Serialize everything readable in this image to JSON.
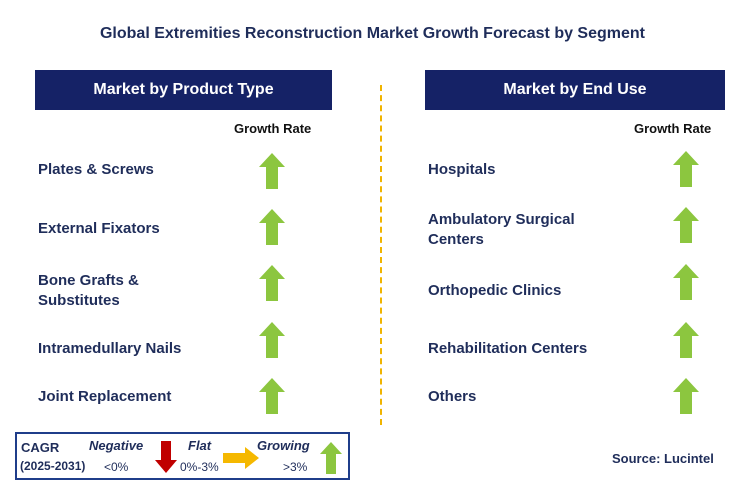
{
  "title": "Global Extremities Reconstruction Market Growth Forecast by Segment",
  "left_panel": {
    "header": "Market by Product Type",
    "growth_rate_label": "Growth Rate",
    "items": [
      {
        "label_line1": "Plates & Screws",
        "label_line2": "",
        "trend": "growing"
      },
      {
        "label_line1": "External Fixators",
        "label_line2": "",
        "trend": "growing"
      },
      {
        "label_line1": "Bone Grafts &",
        "label_line2": "Substitutes",
        "trend": "growing"
      },
      {
        "label_line1": "Intramedullary Nails",
        "label_line2": "",
        "trend": "growing"
      },
      {
        "label_line1": "Joint Replacement",
        "label_line2": "",
        "trend": "growing"
      }
    ]
  },
  "right_panel": {
    "header": "Market by End Use",
    "growth_rate_label": "Growth Rate",
    "items": [
      {
        "label_line1": "Hospitals",
        "label_line2": "",
        "trend": "growing"
      },
      {
        "label_line1": "Ambulatory Surgical",
        "label_line2": "Centers",
        "trend": "growing"
      },
      {
        "label_line1": "Orthopedic Clinics",
        "label_line2": "",
        "trend": "growing"
      },
      {
        "label_line1": "Rehabilitation Centers",
        "label_line2": "",
        "trend": "growing"
      },
      {
        "label_line1": "Others",
        "label_line2": "",
        "trend": "growing"
      }
    ]
  },
  "legend": {
    "cagr_label": "CAGR",
    "period": "(2025-2031)",
    "negative_label": "Negative",
    "negative_range": "<0%",
    "flat_label": "Flat",
    "flat_range": "0%-3%",
    "growing_label": "Growing",
    "growing_range": ">3%"
  },
  "source": "Source: Lucintel",
  "colors": {
    "header_bg": "#152266",
    "growing_arrow": "#8cc63f",
    "negative_arrow": "#c00000",
    "flat_arrow": "#f5b800",
    "divider": "#f0b400"
  }
}
